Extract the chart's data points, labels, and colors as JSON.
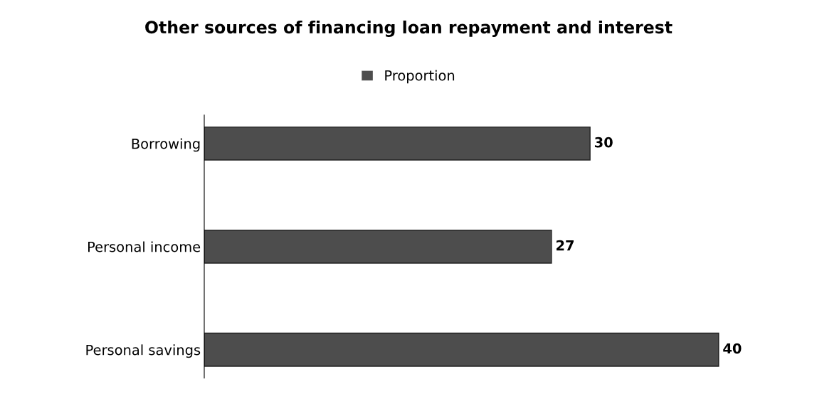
{
  "chart_data": {
    "type": "bar",
    "orientation": "horizontal",
    "title": "Other sources of financing loan repayment and interest",
    "categories": [
      "Borrowing",
      "Personal income",
      "Personal savings"
    ],
    "series": [
      {
        "name": "Proportion",
        "color": "#4d4d4d",
        "values": [
          30,
          27,
          40
        ]
      }
    ],
    "data_labels": true,
    "legend": "top",
    "grid": false
  }
}
